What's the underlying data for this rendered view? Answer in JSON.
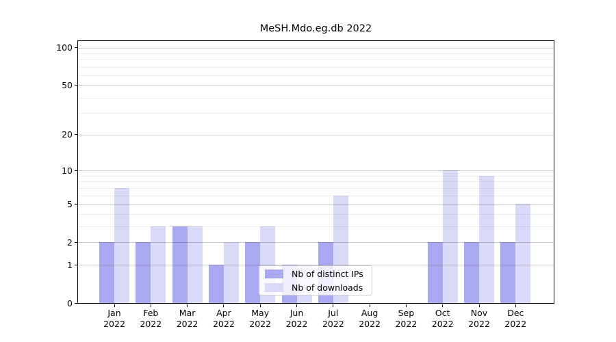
{
  "figure": {
    "title": "MeSH.Mdo.eg.db 2022",
    "background": "#ffffff"
  },
  "chart_data": {
    "type": "bar",
    "title": "MeSH.Mdo.eg.db 2022",
    "categories": [
      "Jan 2022",
      "Feb 2022",
      "Mar 2022",
      "Apr 2022",
      "May 2022",
      "Jun 2022",
      "Jul 2022",
      "Aug 2022",
      "Sep 2022",
      "Oct 2022",
      "Nov 2022",
      "Dec 2022"
    ],
    "series": [
      {
        "name": "Nb of distinct IPs",
        "color": "#a8a9f1",
        "values": [
          2,
          2,
          3,
          1,
          2,
          1,
          2,
          0,
          0,
          2,
          2,
          2
        ]
      },
      {
        "name": "Nb of downloads",
        "color": "#d9daf8",
        "values": [
          7,
          3,
          3,
          2,
          3,
          1,
          6,
          0,
          0,
          10,
          9,
          5
        ]
      }
    ],
    "xlabel": "",
    "ylabel": "",
    "yscale": "log1p",
    "ylim": [
      0,
      113
    ],
    "yticks": [
      0,
      1,
      2,
      5,
      10,
      20,
      50,
      100
    ],
    "minor_gridlines": [
      3,
      4,
      6,
      7,
      8,
      9,
      30,
      40,
      60,
      70,
      80,
      90
    ],
    "grid": true,
    "legend_position": "lower center",
    "grid_color": "#cccccc",
    "minor_grid_color": "#ececec"
  }
}
